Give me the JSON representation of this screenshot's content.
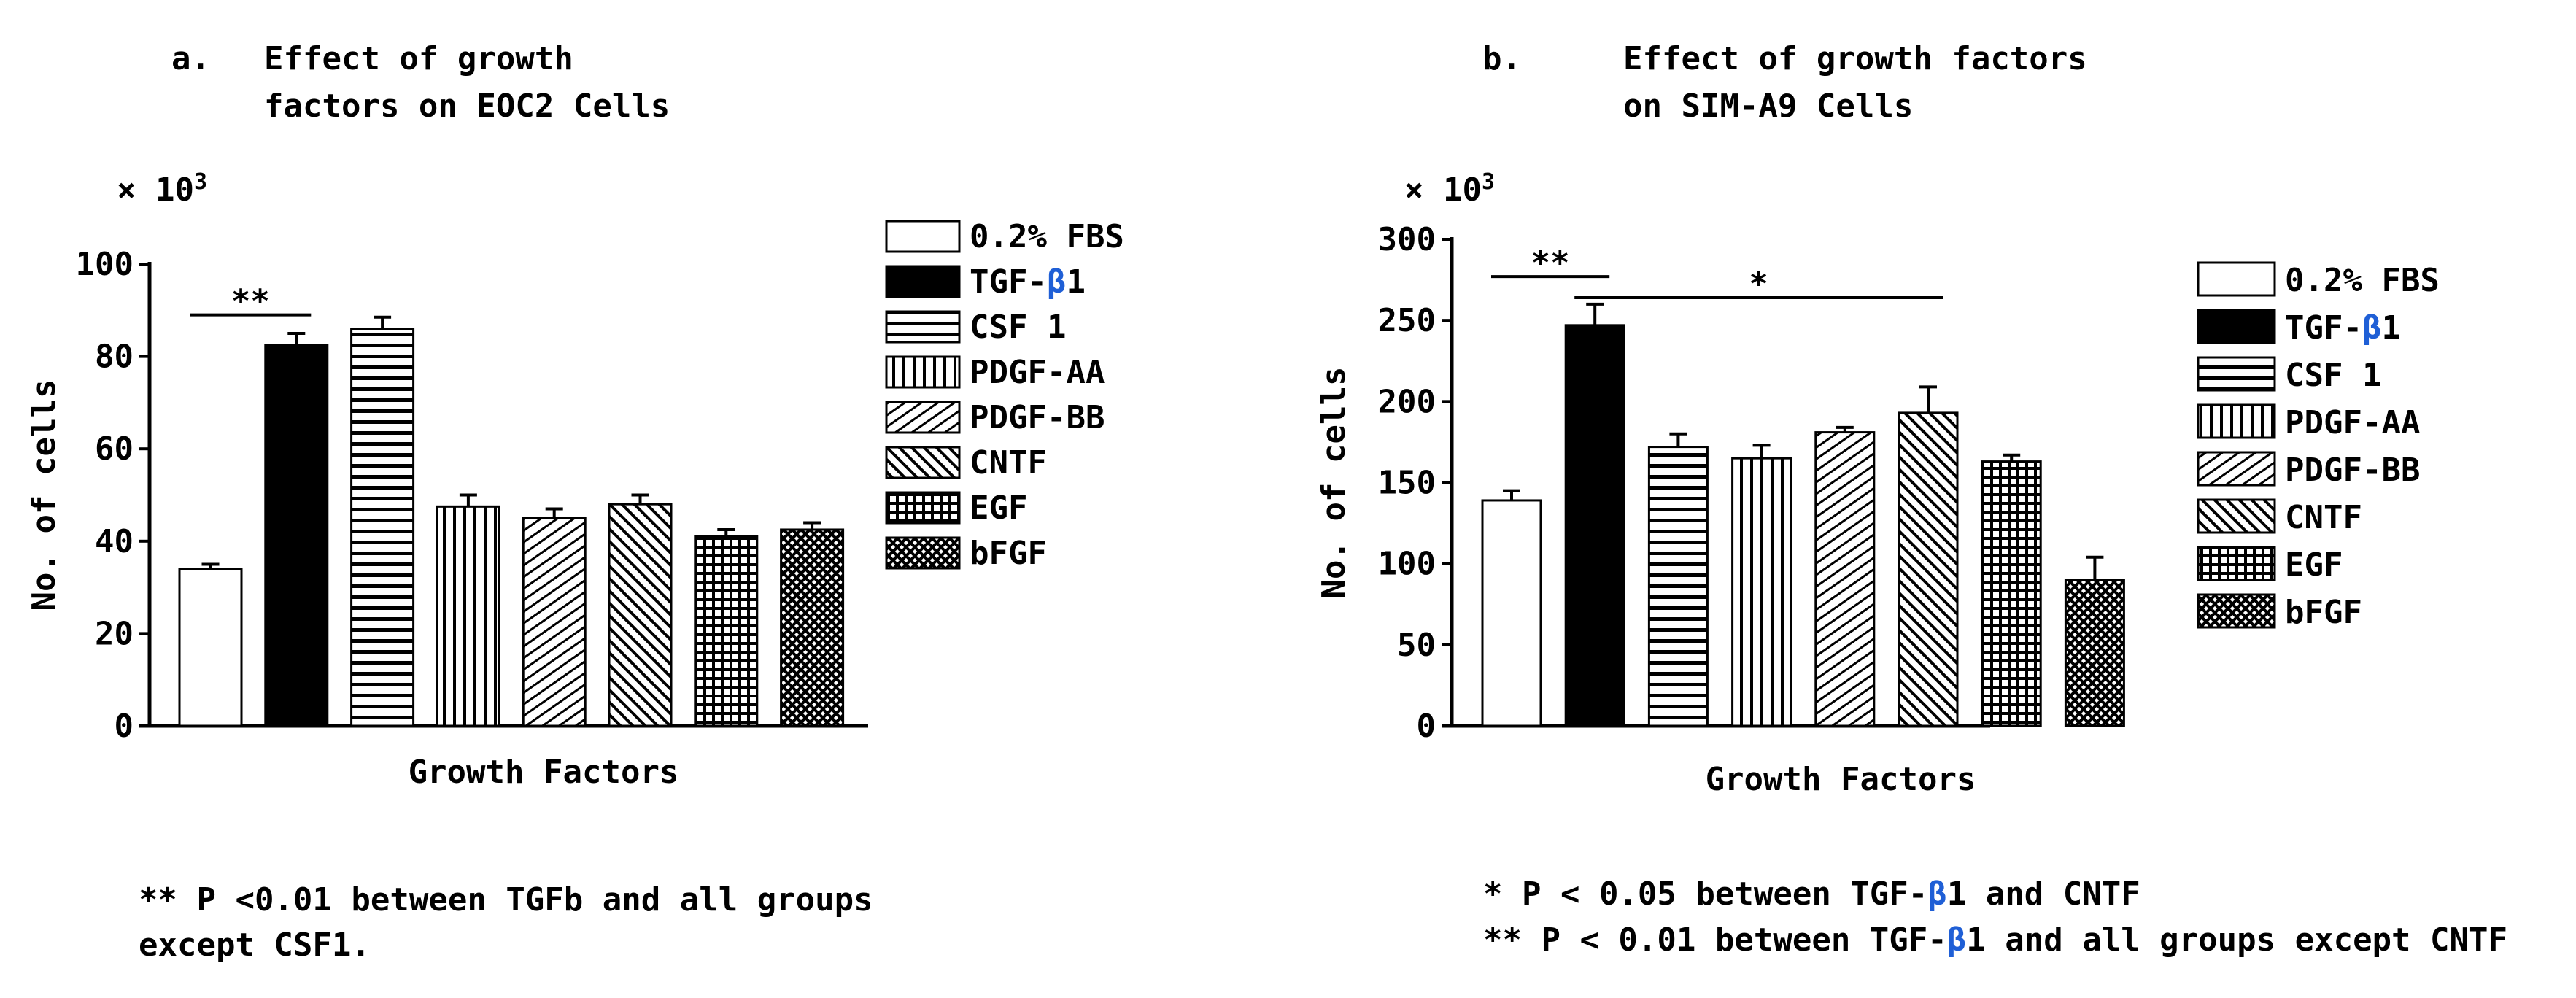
{
  "legend_labels": [
    "0.2% FBS",
    "TGF-β1",
    "CSF 1",
    "PDGF-AA",
    "PDGF-BB",
    "CNTF",
    "EGF",
    "bFGF"
  ],
  "patterns": [
    "white",
    "black",
    "hlines",
    "vlines",
    "diag-thin",
    "diag-dense",
    "grid",
    "cross"
  ],
  "chart_data": [
    {
      "type": "bar",
      "panel_letter": "a.",
      "title_line1": "Effect of growth",
      "title_line2": "factors on EOC2 Cells",
      "multiplier_x": "×",
      "multiplier_base": "10",
      "multiplier_exp": "3",
      "ylabel": "No. of cells",
      "xlabel": "Growth Factors",
      "ylim": [
        0,
        100
      ],
      "yticks": [
        0,
        20,
        40,
        60,
        80,
        100
      ],
      "categories": [
        "0.2% FBS",
        "TGF-β1",
        "CSF 1",
        "PDGF-AA",
        "PDGF-BB",
        "CNTF",
        "EGF",
        "bFGF"
      ],
      "values": [
        34,
        82.5,
        86,
        47.5,
        45,
        48,
        41,
        42.5
      ],
      "errors": [
        1,
        2.5,
        2.5,
        2.5,
        2,
        2,
        1.5,
        1.5
      ],
      "significance": [
        {
          "label": "**",
          "from": 0,
          "to": 1,
          "y": 89
        }
      ],
      "footnote_lines": [
        "** P <0.01 between TGFb and all groups",
        "except CSF1."
      ]
    },
    {
      "type": "bar",
      "panel_letter": "b.",
      "title_line1": "Effect of growth factors",
      "title_line2": "on SIM-A9 Cells",
      "multiplier_x": "×",
      "multiplier_base": "10",
      "multiplier_exp": "3",
      "ylabel": "No. of cells",
      "xlabel": "Growth Factors",
      "ylim": [
        0,
        300
      ],
      "yticks": [
        0,
        50,
        100,
        150,
        200,
        250,
        300
      ],
      "categories": [
        "0.2% FBS",
        "TGF-β1",
        "CSF 1",
        "PDGF-AA",
        "PDGF-BB",
        "CNTF",
        "EGF",
        "bFGF"
      ],
      "values": [
        139,
        247,
        172,
        165,
        181,
        193,
        163,
        90
      ],
      "errors": [
        6,
        13,
        8,
        8,
        3,
        16,
        4,
        14
      ],
      "significance": [
        {
          "label": "**",
          "from": 0,
          "to": 1,
          "y": 277
        },
        {
          "label": "*",
          "from": 1,
          "to": 5,
          "y": 264
        }
      ],
      "footnote_lines": [
        "*  P < 0.05 between TGF-β1 and CNTF",
        "** P < 0.01 between TGF-β1 and all groups except CNTF"
      ]
    }
  ]
}
